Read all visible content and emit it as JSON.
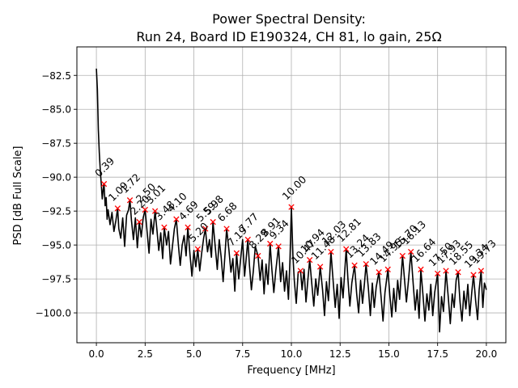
{
  "chart_data": {
    "type": "line",
    "title": "Power Spectral Density:",
    "subtitle": "Run 24, Board ID E190324, CH 81, lo gain, 25Ω",
    "xlabel": "Frequency [MHz]",
    "ylabel": "PSD [dB Full Scale]",
    "xlim": [
      -1.0,
      21.0
    ],
    "ylim": [
      -102.2,
      -80.4
    ],
    "xticks": [
      0.0,
      2.5,
      5.0,
      7.5,
      10.0,
      12.5,
      15.0,
      17.5,
      20.0
    ],
    "xtick_labels": [
      "0.0",
      "2.5",
      "5.0",
      "7.5",
      "10.0",
      "12.5",
      "15.0",
      "17.5",
      "20.0"
    ],
    "yticks": [
      -82.5,
      -85.0,
      -87.5,
      -90.0,
      -92.5,
      -95.0,
      -97.5,
      -100.0
    ],
    "ytick_labels": [
      "−82.5",
      "−85.0",
      "−87.5",
      "−90.0",
      "−92.5",
      "−95.0",
      "−97.5",
      "−100.0"
    ],
    "grid": true,
    "line_color": "#000000",
    "marker_color": "#ff0000",
    "peaks": [
      {
        "label": "0.39",
        "x": 0.39,
        "y": -90.5
      },
      {
        "label": "1.09",
        "x": 1.09,
        "y": -92.3
      },
      {
        "label": "1.72",
        "x": 1.72,
        "y": -91.7
      },
      {
        "label": "2.20",
        "x": 2.2,
        "y": -93.3
      },
      {
        "label": "2.50",
        "x": 2.5,
        "y": -92.4
      },
      {
        "label": "3.01",
        "x": 3.01,
        "y": -92.5
      },
      {
        "label": "3.48",
        "x": 3.48,
        "y": -93.7
      },
      {
        "label": "4.10",
        "x": 4.1,
        "y": -93.1
      },
      {
        "label": "4.69",
        "x": 4.69,
        "y": -93.7
      },
      {
        "label": "5.20",
        "x": 5.2,
        "y": -95.3
      },
      {
        "label": "5.59",
        "x": 5.59,
        "y": -93.8
      },
      {
        "label": "5.98",
        "x": 5.98,
        "y": -93.3
      },
      {
        "label": "6.68",
        "x": 6.68,
        "y": -93.8
      },
      {
        "label": "7.19",
        "x": 7.19,
        "y": -95.6
      },
      {
        "label": "7.77",
        "x": 7.77,
        "y": -94.6
      },
      {
        "label": "8.29",
        "x": 8.29,
        "y": -95.8
      },
      {
        "label": "8.91",
        "x": 8.91,
        "y": -94.9
      },
      {
        "label": "9.34",
        "x": 9.34,
        "y": -95.1
      },
      {
        "label": "10.00",
        "x": 10.0,
        "y": -92.2
      },
      {
        "label": "10.47",
        "x": 10.47,
        "y": -96.9
      },
      {
        "label": "10.94",
        "x": 10.94,
        "y": -96.1
      },
      {
        "label": "11.48",
        "x": 11.48,
        "y": -96.6
      },
      {
        "label": "12.03",
        "x": 12.03,
        "y": -95.5
      },
      {
        "label": "12.81",
        "x": 12.81,
        "y": -95.3
      },
      {
        "label": "13.24",
        "x": 13.24,
        "y": -96.5
      },
      {
        "label": "13.83",
        "x": 13.83,
        "y": -96.4
      },
      {
        "label": "14.49",
        "x": 14.49,
        "y": -97.0
      },
      {
        "label": "14.95",
        "x": 14.95,
        "y": -96.8
      },
      {
        "label": "15.70",
        "x": 15.7,
        "y": -95.8
      },
      {
        "label": "16.13",
        "x": 16.13,
        "y": -95.5
      },
      {
        "label": "16.64",
        "x": 16.64,
        "y": -96.8
      },
      {
        "label": "17.50",
        "x": 17.5,
        "y": -97.1
      },
      {
        "label": "17.93",
        "x": 17.93,
        "y": -96.9
      },
      {
        "label": "18.55",
        "x": 18.55,
        "y": -97.0
      },
      {
        "label": "19.34",
        "x": 19.34,
        "y": -97.2
      },
      {
        "label": "19.73",
        "x": 19.73,
        "y": -96.9
      }
    ],
    "series": [
      {
        "x": [
          0.0,
          0.05,
          0.1,
          0.15,
          0.2,
          0.25,
          0.3,
          0.35,
          0.39,
          0.45,
          0.5,
          0.55,
          0.6,
          0.7,
          0.8,
          0.9,
          1.0,
          1.09,
          1.15,
          1.25,
          1.35,
          1.45,
          1.55,
          1.65,
          1.72,
          1.8,
          1.9,
          2.0,
          2.1,
          2.2,
          2.3,
          2.4,
          2.5,
          2.6,
          2.7,
          2.8,
          2.9,
          3.01,
          3.1,
          3.2,
          3.3,
          3.4,
          3.48,
          3.6,
          3.7,
          3.8,
          3.9,
          4.0,
          4.1,
          4.2,
          4.3,
          4.4,
          4.5,
          4.6,
          4.69,
          4.8,
          4.9,
          5.0,
          5.1,
          5.2,
          5.3,
          5.4,
          5.5,
          5.59,
          5.7,
          5.8,
          5.9,
          5.98,
          6.1,
          6.2,
          6.3,
          6.4,
          6.5,
          6.6,
          6.68,
          6.8,
          6.9,
          7.0,
          7.1,
          7.19,
          7.3,
          7.4,
          7.5,
          7.6,
          7.77,
          7.85,
          7.95,
          8.05,
          8.15,
          8.29,
          8.4,
          8.5,
          8.6,
          8.7,
          8.8,
          8.91,
          9.0,
          9.1,
          9.2,
          9.34,
          9.45,
          9.55,
          9.65,
          9.75,
          9.85,
          9.93,
          10.0,
          10.08,
          10.15,
          10.25,
          10.35,
          10.47,
          10.55,
          10.65,
          10.75,
          10.85,
          10.94,
          11.05,
          11.15,
          11.25,
          11.35,
          11.48,
          11.6,
          11.7,
          11.8,
          11.9,
          12.03,
          12.15,
          12.25,
          12.35,
          12.45,
          12.55,
          12.65,
          12.81,
          12.9,
          13.0,
          13.1,
          13.24,
          13.35,
          13.45,
          13.55,
          13.65,
          13.75,
          13.83,
          13.95,
          14.05,
          14.15,
          14.25,
          14.35,
          14.49,
          14.6,
          14.7,
          14.8,
          14.95,
          15.05,
          15.15,
          15.25,
          15.35,
          15.45,
          15.55,
          15.7,
          15.8,
          15.9,
          16.0,
          16.13,
          16.25,
          16.35,
          16.45,
          16.55,
          16.64,
          16.75,
          16.85,
          16.95,
          17.05,
          17.15,
          17.25,
          17.35,
          17.5,
          17.6,
          17.7,
          17.8,
          17.93,
          18.05,
          18.15,
          18.25,
          18.35,
          18.45,
          18.55,
          18.65,
          18.75,
          18.85,
          18.95,
          19.05,
          19.15,
          19.25,
          19.34,
          19.45,
          19.55,
          19.63,
          19.73,
          19.82,
          19.9,
          20.0
        ],
        "y": [
          -82.0,
          -83.5,
          -86.5,
          -88.2,
          -89.5,
          -90.5,
          -91.6,
          -90.9,
          -90.5,
          -92.1,
          -91.5,
          -93.1,
          -92.4,
          -93.5,
          -92.6,
          -94.0,
          -93.2,
          -92.3,
          -93.8,
          -94.5,
          -93.0,
          -95.1,
          -92.8,
          -92.4,
          -91.7,
          -93.2,
          -94.6,
          -93.0,
          -95.2,
          -93.3,
          -94.4,
          -93.0,
          -92.4,
          -94.0,
          -95.6,
          -93.1,
          -94.2,
          -92.5,
          -93.8,
          -95.4,
          -94.1,
          -96.0,
          -93.7,
          -95.0,
          -94.0,
          -96.4,
          -95.1,
          -93.8,
          -93.1,
          -94.9,
          -96.5,
          -95.0,
          -94.3,
          -95.8,
          -93.7,
          -95.7,
          -97.3,
          -95.4,
          -96.6,
          -95.3,
          -96.9,
          -95.6,
          -94.5,
          -93.8,
          -95.5,
          -94.6,
          -95.9,
          -93.3,
          -95.2,
          -96.8,
          -94.6,
          -95.9,
          -97.7,
          -95.6,
          -93.8,
          -95.4,
          -97.0,
          -96.0,
          -98.4,
          -95.6,
          -97.5,
          -96.0,
          -94.6,
          -97.3,
          -94.6,
          -96.5,
          -98.3,
          -96.9,
          -95.1,
          -95.8,
          -97.6,
          -96.1,
          -98.6,
          -96.4,
          -97.9,
          -94.9,
          -96.8,
          -98.5,
          -96.9,
          -95.1,
          -97.7,
          -96.3,
          -98.4,
          -96.9,
          -99.0,
          -96.0,
          -92.2,
          -95.8,
          -97.6,
          -99.3,
          -97.0,
          -96.9,
          -98.3,
          -96.8,
          -99.2,
          -97.5,
          -96.1,
          -97.9,
          -99.5,
          -97.5,
          -98.7,
          -96.6,
          -98.3,
          -100.2,
          -97.7,
          -99.1,
          -95.5,
          -97.8,
          -99.6,
          -97.9,
          -100.4,
          -97.4,
          -98.9,
          -95.3,
          -97.5,
          -99.5,
          -97.8,
          -96.5,
          -98.6,
          -100.0,
          -97.6,
          -99.3,
          -97.8,
          -96.4,
          -98.2,
          -100.2,
          -97.8,
          -99.6,
          -98.1,
          -97.0,
          -98.8,
          -100.6,
          -98.5,
          -96.8,
          -98.7,
          -100.3,
          -98.2,
          -99.9,
          -97.6,
          -99.0,
          -95.8,
          -97.5,
          -99.2,
          -97.7,
          -95.5,
          -97.9,
          -99.8,
          -98.3,
          -100.4,
          -96.8,
          -98.7,
          -100.6,
          -98.6,
          -99.8,
          -97.9,
          -100.2,
          -98.5,
          -97.1,
          -101.4,
          -98.8,
          -99.9,
          -96.9,
          -98.9,
          -100.8,
          -98.6,
          -99.6,
          -97.6,
          -97.0,
          -99.2,
          -100.6,
          -98.4,
          -99.7,
          -97.9,
          -100.2,
          -98.5,
          -97.2,
          -99.1,
          -100.5,
          -98.3,
          -96.9,
          -99.6,
          -97.8,
          -98.3
        ]
      }
    ]
  }
}
